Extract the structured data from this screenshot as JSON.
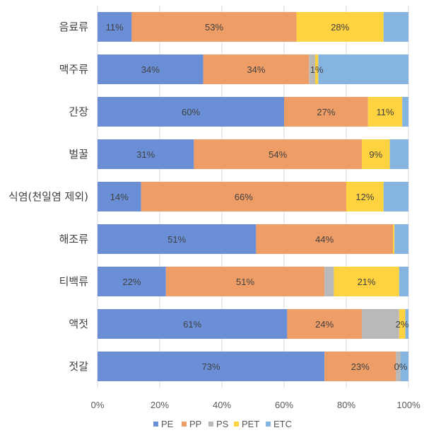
{
  "chart_data": {
    "type": "bar",
    "orientation": "horizontal",
    "stacked": true,
    "percent_stacked": true,
    "categories": [
      "음료류",
      "맥주류",
      "간장",
      "벌꿀",
      "식염(천일염 제외)",
      "해조류",
      "티백류",
      "액젓",
      "젓갈"
    ],
    "series": [
      {
        "name": "PE",
        "color": "#6A8FD6",
        "values": [
          11,
          34,
          60,
          31,
          14,
          51,
          22,
          61,
          73
        ]
      },
      {
        "name": "PP",
        "color": "#EE9D67",
        "values": [
          53,
          34,
          27,
          54,
          66,
          44,
          51,
          24,
          23
        ]
      },
      {
        "name": "PS",
        "color": "#B9B9B9",
        "values": [
          0,
          2,
          0,
          0,
          0,
          0,
          3,
          12,
          1.5
        ]
      },
      {
        "name": "PET",
        "color": "#FFD23F",
        "values": [
          28,
          1,
          11,
          9,
          12,
          0.5,
          21,
          2,
          0
        ]
      },
      {
        "name": "ETC",
        "color": "#86B4E0",
        "values": [
          8,
          29,
          2,
          6,
          8,
          4.5,
          3,
          1,
          2.5
        ]
      }
    ],
    "data_labels": [
      [
        {
          "series": 0,
          "text": "11%"
        },
        {
          "series": 1,
          "text": "53%"
        },
        {
          "series": 3,
          "text": "28%"
        }
      ],
      [
        {
          "series": 0,
          "text": "34%"
        },
        {
          "series": 1,
          "text": "34%"
        },
        {
          "series": 3,
          "text": "1%"
        }
      ],
      [
        {
          "series": 0,
          "text": "60%"
        },
        {
          "series": 1,
          "text": "27%"
        },
        {
          "series": 3,
          "text": "11%"
        }
      ],
      [
        {
          "series": 0,
          "text": "31%"
        },
        {
          "series": 1,
          "text": "54%"
        },
        {
          "series": 3,
          "text": "9%"
        }
      ],
      [
        {
          "series": 0,
          "text": "14%"
        },
        {
          "series": 1,
          "text": "66%"
        },
        {
          "series": 3,
          "text": "12%"
        }
      ],
      [
        {
          "series": 0,
          "text": "51%"
        },
        {
          "series": 1,
          "text": "44%"
        }
      ],
      [
        {
          "series": 0,
          "text": "22%"
        },
        {
          "series": 1,
          "text": "51%"
        },
        {
          "series": 3,
          "text": "21%"
        }
      ],
      [
        {
          "series": 0,
          "text": "61%"
        },
        {
          "series": 1,
          "text": "24%"
        },
        {
          "series": 3,
          "text": "2%"
        }
      ],
      [
        {
          "series": 0,
          "text": "73%"
        },
        {
          "series": 1,
          "text": "23%"
        },
        {
          "series": 3,
          "text": "0%"
        }
      ]
    ],
    "x_ticks": [
      "0%",
      "20%",
      "40%",
      "60%",
      "80%",
      "100%"
    ],
    "xlim": [
      0,
      100
    ],
    "title": "",
    "xlabel": "",
    "ylabel": "",
    "grid": true,
    "legend_position": "bottom",
    "colors": {
      "grid": "#D9D9D9",
      "text": "#595959"
    }
  }
}
